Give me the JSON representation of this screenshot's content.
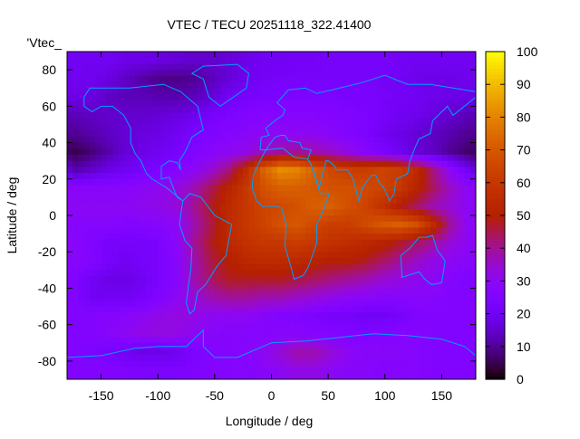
{
  "chart_data": {
    "type": "heatmap",
    "title": "VTEC / TECU 20251118_322.41400",
    "key_label": "'Vtec_",
    "xlabel": "Longitude / deg",
    "ylabel": "Latitude / deg",
    "xlim": [
      -180,
      180
    ],
    "ylim": [
      -90,
      90
    ],
    "xticks": [
      -150,
      -100,
      -50,
      0,
      50,
      100,
      150
    ],
    "yticks": [
      -80,
      -60,
      -40,
      -20,
      0,
      20,
      40,
      60,
      80
    ],
    "colorbar": {
      "range": [
        0,
        100
      ],
      "ticks": [
        0,
        10,
        20,
        30,
        40,
        50,
        60,
        70,
        80,
        90,
        100
      ],
      "palette": "black-purple-red-orange-yellow"
    },
    "coastline_color": "#00a0ff",
    "grid_lon_centers": [
      -172.5,
      -157.5,
      -142.5,
      -127.5,
      -112.5,
      -97.5,
      -82.5,
      -67.5,
      -52.5,
      -37.5,
      -22.5,
      -7.5,
      7.5,
      22.5,
      37.5,
      52.5,
      67.5,
      82.5,
      97.5,
      112.5,
      127.5,
      142.5,
      157.5,
      172.5
    ],
    "grid_lat_centers": [
      85,
      75,
      65,
      55,
      45,
      35,
      25,
      15,
      5,
      -5,
      -15,
      -25,
      -35,
      -45,
      -55,
      -65,
      -75,
      -85
    ],
    "values": [
      [
        20,
        20,
        20,
        18,
        18,
        17,
        16,
        15,
        15,
        16,
        18,
        20,
        20,
        21,
        21,
        22,
        22,
        22,
        22,
        21,
        20,
        20,
        20,
        20
      ],
      [
        20,
        19,
        17,
        14,
        11,
        9,
        9,
        10,
        13,
        16,
        19,
        21,
        22,
        22,
        22,
        22,
        22,
        22,
        21,
        20,
        19,
        18,
        18,
        19
      ],
      [
        18,
        17,
        14,
        13,
        13,
        12,
        12,
        13,
        16,
        20,
        22,
        23,
        24,
        24,
        24,
        24,
        23,
        23,
        22,
        21,
        20,
        19,
        18,
        18
      ],
      [
        13,
        14,
        15,
        15,
        15,
        16,
        17,
        19,
        22,
        24,
        26,
        27,
        27,
        27,
        27,
        26,
        25,
        24,
        22,
        20,
        19,
        17,
        15,
        13
      ],
      [
        10,
        12,
        14,
        16,
        17,
        18,
        20,
        23,
        25,
        27,
        28,
        30,
        30,
        30,
        30,
        28,
        26,
        24,
        20,
        18,
        16,
        14,
        12,
        10
      ],
      [
        5,
        8,
        12,
        16,
        18,
        20,
        22,
        25,
        28,
        30,
        32,
        36,
        40,
        40,
        38,
        36,
        32,
        28,
        24,
        20,
        16,
        14,
        10,
        7
      ],
      [
        12,
        15,
        18,
        20,
        22,
        24,
        27,
        30,
        35,
        42,
        55,
        72,
        82,
        80,
        72,
        65,
        62,
        62,
        64,
        62,
        55,
        42,
        30,
        20
      ],
      [
        28,
        28,
        28,
        28,
        30,
        31,
        33,
        38,
        45,
        52,
        60,
        68,
        72,
        72,
        70,
        68,
        68,
        66,
        64,
        60,
        52,
        44,
        36,
        30
      ],
      [
        30,
        30,
        30,
        30,
        31,
        32,
        34,
        40,
        48,
        55,
        60,
        64,
        66,
        68,
        72,
        72,
        68,
        64,
        58,
        50,
        44,
        38,
        34,
        30
      ],
      [
        27,
        27,
        27,
        26,
        27,
        28,
        30,
        38,
        46,
        55,
        60,
        64,
        68,
        70,
        66,
        62,
        62,
        66,
        70,
        72,
        68,
        55,
        40,
        30
      ],
      [
        28,
        25,
        22,
        22,
        22,
        24,
        30,
        40,
        48,
        54,
        58,
        60,
        60,
        62,
        60,
        58,
        56,
        54,
        52,
        48,
        44,
        40,
        34,
        30
      ],
      [
        28,
        26,
        22,
        20,
        22,
        24,
        28,
        38,
        46,
        50,
        54,
        55,
        55,
        55,
        52,
        50,
        50,
        48,
        44,
        40,
        36,
        32,
        30,
        28
      ],
      [
        25,
        20,
        18,
        18,
        20,
        24,
        28,
        38,
        44,
        48,
        48,
        48,
        48,
        46,
        44,
        42,
        40,
        38,
        35,
        33,
        31,
        30,
        27,
        25
      ],
      [
        25,
        20,
        20,
        20,
        22,
        26,
        30,
        34,
        38,
        40,
        40,
        38,
        38,
        36,
        34,
        32,
        30,
        29,
        28,
        28,
        28,
        28,
        26,
        25
      ],
      [
        26,
        26,
        27,
        28,
        30,
        32,
        33,
        32,
        30,
        30,
        30,
        28,
        26,
        25,
        24,
        22,
        22,
        20,
        20,
        22,
        25,
        26,
        26,
        26
      ],
      [
        25,
        26,
        28,
        30,
        32,
        33,
        32,
        30,
        28,
        27,
        27,
        27,
        28,
        28,
        27,
        26,
        25,
        25,
        26,
        27,
        27,
        26,
        25,
        25
      ],
      [
        25,
        24,
        22,
        20,
        18,
        18,
        20,
        24,
        26,
        27,
        28,
        30,
        34,
        38,
        38,
        34,
        30,
        28,
        28,
        28,
        27,
        26,
        25,
        25
      ],
      [
        26,
        26,
        26,
        25,
        24,
        24,
        24,
        25,
        26,
        27,
        27,
        28,
        30,
        32,
        32,
        30,
        28,
        28,
        27,
        27,
        27,
        26,
        26,
        26
      ]
    ]
  }
}
